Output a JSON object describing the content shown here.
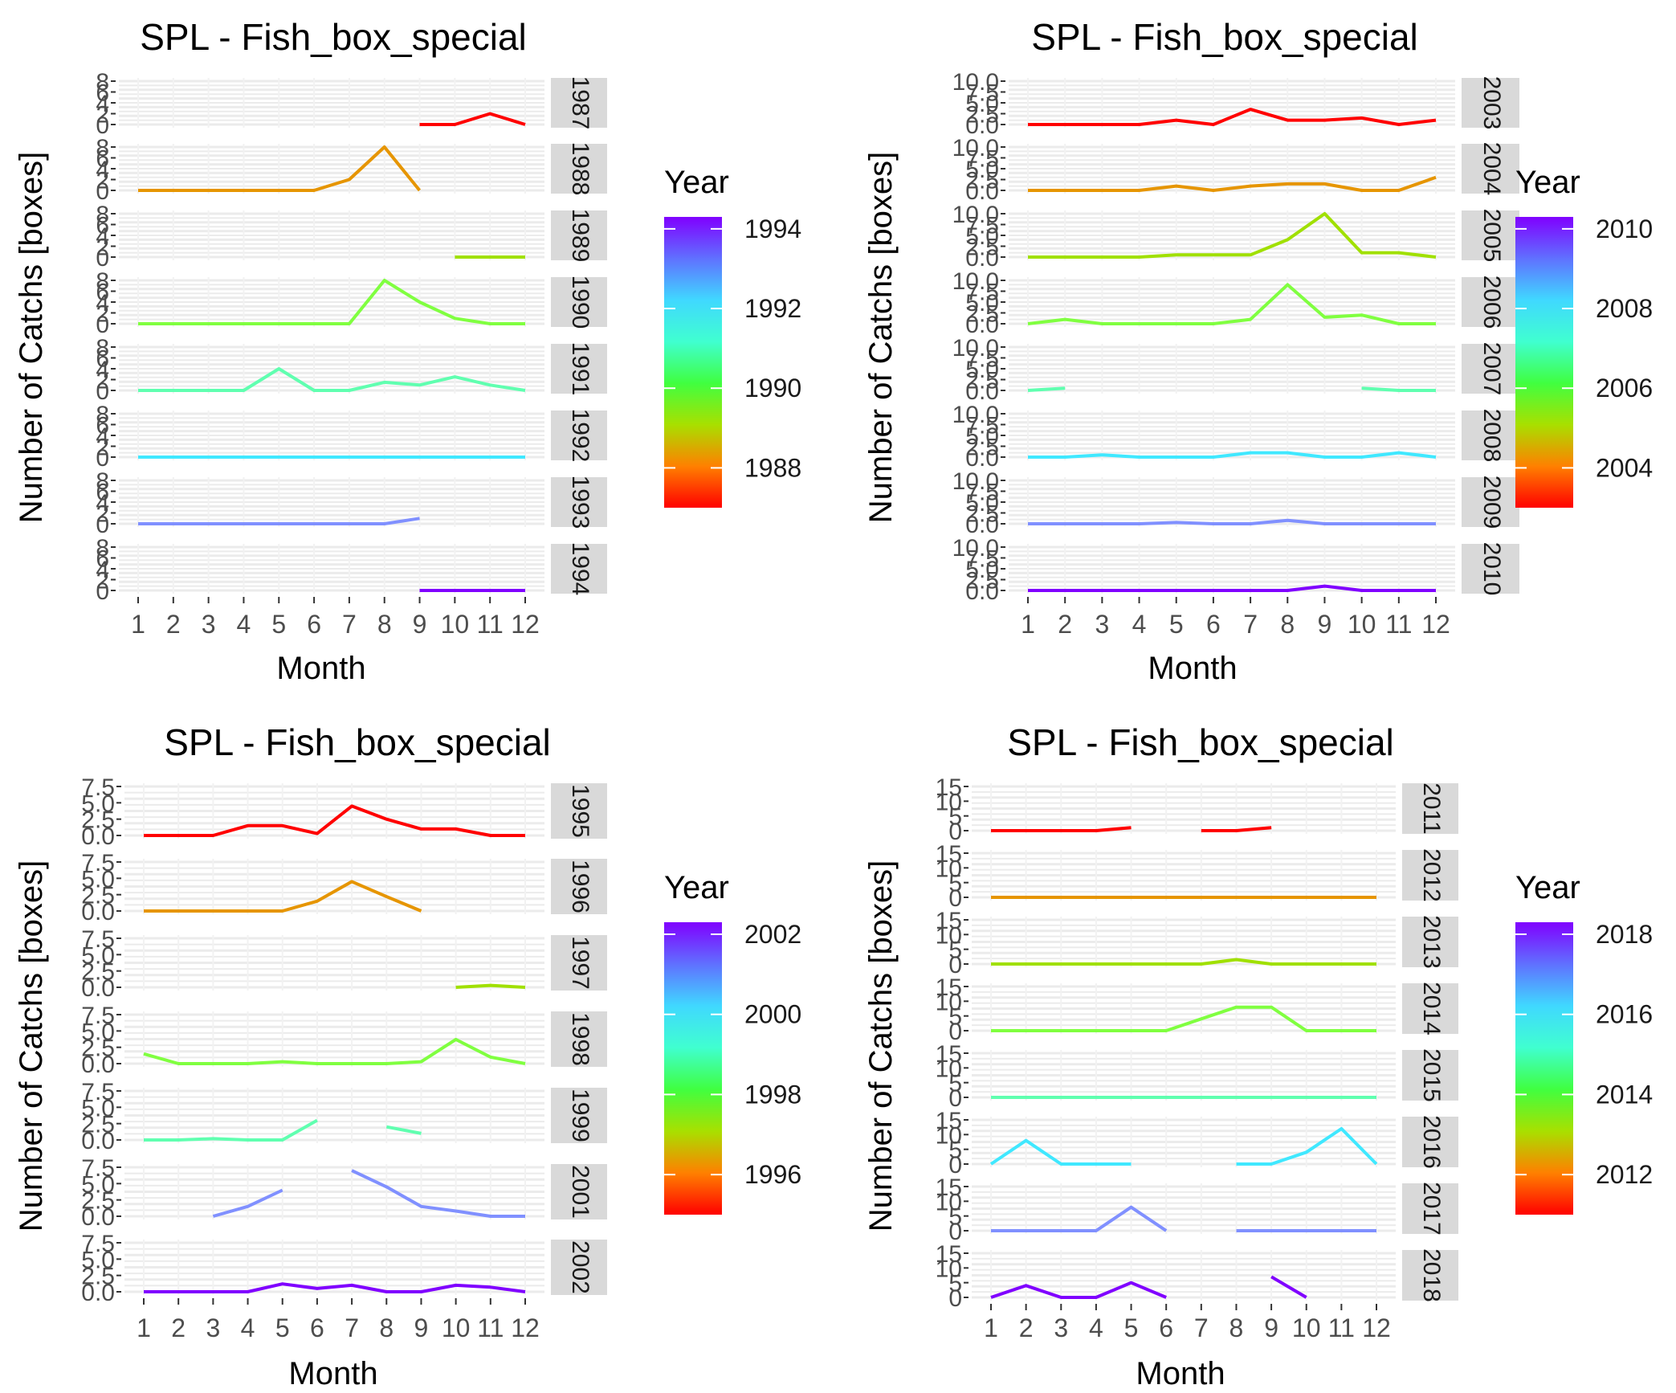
{
  "chart_data": [
    {
      "type": "line",
      "title": "SPL - Fish_box_special",
      "xlabel": "Month",
      "ylabel": "Number of Catchs [boxes]",
      "legend_title": "Year",
      "x": [
        1,
        2,
        3,
        4,
        5,
        6,
        7,
        8,
        9,
        10,
        11,
        12
      ],
      "ylim": [
        0,
        8
      ],
      "yticks": [
        "0",
        "2",
        "4",
        "6",
        "8"
      ],
      "legend_ticks": [
        1988,
        1990,
        1992,
        1994
      ],
      "legend_range": [
        1987,
        1994.3
      ],
      "series": [
        {
          "name": "1987",
          "color": "#ff0000",
          "values": [
            null,
            null,
            null,
            null,
            null,
            null,
            null,
            null,
            0,
            0,
            2,
            0
          ]
        },
        {
          "name": "1988",
          "color": "#e69500",
          "values": [
            0,
            0,
            0,
            0,
            0,
            0,
            2,
            8,
            0,
            null,
            null,
            null
          ]
        },
        {
          "name": "1989",
          "color": "#a0e000",
          "values": [
            null,
            null,
            null,
            null,
            null,
            null,
            null,
            null,
            null,
            0,
            0,
            0
          ]
        },
        {
          "name": "1990",
          "color": "#80ff40",
          "values": [
            0,
            0,
            0,
            0,
            0,
            0,
            0,
            8,
            4,
            1,
            0,
            0
          ]
        },
        {
          "name": "1991",
          "color": "#60ffb0",
          "values": [
            0,
            0,
            0,
            0,
            4,
            0,
            0,
            1.5,
            1,
            2.5,
            1,
            0
          ]
        },
        {
          "name": "1992",
          "color": "#40e8ff",
          "values": [
            0,
            0,
            0,
            0,
            0,
            0,
            0,
            0,
            0,
            0,
            0,
            0
          ]
        },
        {
          "name": "1993",
          "color": "#8090ff",
          "values": [
            0,
            0,
            0,
            0,
            0,
            0,
            0,
            0,
            1,
            null,
            null,
            null
          ]
        },
        {
          "name": "1994",
          "color": "#8000ff",
          "values": [
            null,
            null,
            null,
            null,
            null,
            null,
            null,
            null,
            0,
            0,
            0,
            0
          ]
        }
      ]
    },
    {
      "type": "line",
      "title": "SPL - Fish_box_special",
      "xlabel": "Month",
      "ylabel": "Number of Catchs [boxes]",
      "legend_title": "Year",
      "x": [
        1,
        2,
        3,
        4,
        5,
        6,
        7,
        8,
        9,
        10,
        11,
        12
      ],
      "ylim": [
        0,
        10
      ],
      "yticks": [
        "0.0",
        "2.5",
        "5.0",
        "7.5",
        "10.0"
      ],
      "legend_ticks": [
        2004,
        2006,
        2008,
        2010
      ],
      "legend_range": [
        2003,
        2010.3
      ],
      "series": [
        {
          "name": "2003",
          "color": "#ff0000",
          "values": [
            0,
            0,
            0,
            0,
            1,
            0,
            3.5,
            1,
            1,
            1.5,
            0,
            1
          ]
        },
        {
          "name": "2004",
          "color": "#e69500",
          "values": [
            0,
            0,
            0,
            0,
            1,
            0,
            1,
            1.5,
            1.5,
            0,
            0,
            3
          ]
        },
        {
          "name": "2005",
          "color": "#a0e000",
          "values": [
            0,
            0,
            0,
            0,
            0.5,
            0.5,
            0.5,
            4,
            10,
            1,
            1,
            0
          ]
        },
        {
          "name": "2006",
          "color": "#80ff40",
          "values": [
            0,
            1,
            0,
            0,
            0,
            0,
            1,
            9,
            1.5,
            2,
            0,
            0
          ]
        },
        {
          "name": "2007",
          "color": "#60ffb0",
          "values": [
            0,
            0.5,
            null,
            null,
            null,
            null,
            null,
            null,
            null,
            0.5,
            0,
            0
          ]
        },
        {
          "name": "2008",
          "color": "#40e8ff",
          "values": [
            0,
            0,
            0.5,
            0,
            0,
            0,
            1,
            1,
            0,
            0,
            1,
            0
          ]
        },
        {
          "name": "2009",
          "color": "#8090ff",
          "values": [
            0,
            0,
            0,
            0,
            0.3,
            0,
            0,
            0.8,
            0,
            0,
            0,
            0
          ]
        },
        {
          "name": "2010",
          "color": "#8000ff",
          "values": [
            0,
            0,
            0,
            0,
            0,
            0,
            0,
            0,
            1,
            0,
            0,
            0
          ]
        }
      ]
    },
    {
      "type": "line",
      "title": "SPL - Fish_box_special",
      "xlabel": "Month",
      "ylabel": "Number of Catchs [boxes]",
      "legend_title": "Year",
      "x": [
        1,
        2,
        3,
        4,
        5,
        6,
        7,
        8,
        9,
        10,
        11,
        12
      ],
      "ylim": [
        0,
        7.5
      ],
      "yticks": [
        "0.0",
        "2.5",
        "5.0",
        "7.5"
      ],
      "legend_ticks": [
        1996,
        1998,
        2000,
        2002
      ],
      "legend_range": [
        1995,
        2002.3
      ],
      "series": [
        {
          "name": "1995",
          "color": "#ff0000",
          "values": [
            0,
            0,
            0,
            1.5,
            1.5,
            0.3,
            4.5,
            2.5,
            1,
            1,
            0,
            0
          ]
        },
        {
          "name": "1996",
          "color": "#e69500",
          "values": [
            0,
            0,
            0,
            0,
            0,
            1.5,
            4.5,
            2.2,
            0,
            null,
            null,
            null
          ]
        },
        {
          "name": "1997",
          "color": "#a0e000",
          "values": [
            null,
            null,
            null,
            null,
            null,
            null,
            null,
            null,
            null,
            0,
            0.3,
            0
          ]
        },
        {
          "name": "1998",
          "color": "#80ff40",
          "values": [
            1.5,
            0,
            0,
            0,
            0.3,
            0,
            0,
            0,
            0.3,
            3.7,
            1,
            0
          ]
        },
        {
          "name": "1999",
          "color": "#60ffb0",
          "values": [
            0,
            0,
            0.2,
            0,
            0,
            3,
            null,
            2,
            1,
            null,
            null,
            null
          ]
        },
        {
          "name": "2001",
          "color": "#8090ff",
          "values": [
            null,
            null,
            0,
            1.5,
            4,
            null,
            7,
            4.5,
            1.5,
            0.8,
            0,
            0
          ]
        },
        {
          "name": "2002",
          "color": "#8000ff",
          "values": [
            0,
            0,
            0,
            0,
            1.2,
            0.5,
            1,
            0,
            0,
            1,
            0.7,
            0
          ]
        }
      ]
    },
    {
      "type": "line",
      "title": "SPL - Fish_box_special",
      "xlabel": "Month",
      "ylabel": "Number of Catchs [boxes]",
      "legend_title": "Year",
      "x": [
        1,
        2,
        3,
        4,
        5,
        6,
        7,
        8,
        9,
        10,
        11,
        12
      ],
      "ylim": [
        0,
        15
      ],
      "yticks": [
        "0",
        "5",
        "10",
        "15"
      ],
      "legend_ticks": [
        2012,
        2014,
        2016,
        2018
      ],
      "legend_range": [
        2011,
        2018.3
      ],
      "series": [
        {
          "name": "2011",
          "color": "#ff0000",
          "values": [
            0,
            0,
            0,
            0,
            1,
            null,
            0,
            0,
            1,
            null,
            null,
            null
          ]
        },
        {
          "name": "2012",
          "color": "#e69500",
          "values": [
            0,
            0,
            0,
            0,
            0,
            0,
            0,
            0,
            0,
            0,
            0,
            0
          ]
        },
        {
          "name": "2013",
          "color": "#a0e000",
          "values": [
            0,
            0,
            0,
            0,
            0,
            0,
            0,
            1.5,
            0,
            0,
            0,
            0
          ]
        },
        {
          "name": "2014",
          "color": "#80ff40",
          "values": [
            0,
            0,
            0,
            0,
            0,
            0,
            4,
            8,
            8,
            0,
            0,
            0
          ]
        },
        {
          "name": "2015",
          "color": "#60ffb0",
          "values": [
            0,
            0,
            0,
            0,
            0,
            0,
            0,
            0,
            0,
            0,
            0,
            0
          ]
        },
        {
          "name": "2016",
          "color": "#40e8ff",
          "values": [
            0,
            8,
            0,
            0,
            0,
            null,
            null,
            0,
            0,
            4,
            12,
            0
          ]
        },
        {
          "name": "2017",
          "color": "#8090ff",
          "values": [
            0,
            0,
            0,
            0,
            8,
            0,
            null,
            0,
            0,
            0,
            0,
            0
          ]
        },
        {
          "name": "2018",
          "color": "#8000ff",
          "values": [
            0,
            4,
            0,
            0,
            5,
            0,
            null,
            null,
            7,
            0,
            null,
            null
          ]
        }
      ]
    }
  ]
}
